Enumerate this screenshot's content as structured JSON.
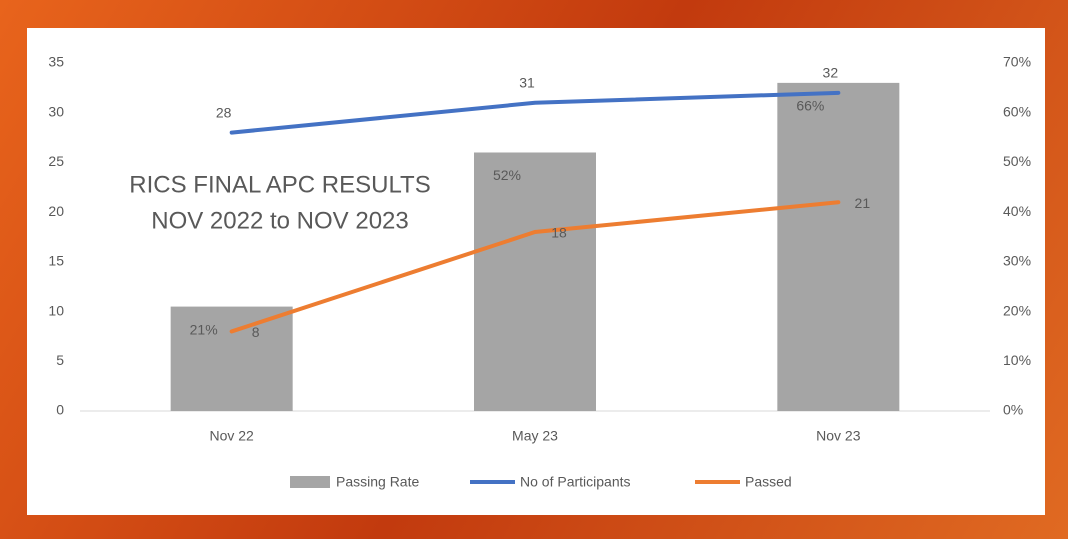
{
  "chart_data": {
    "type": "combo",
    "title": "RICS FINAL APC RESULTS",
    "subtitle": "NOV 2022 to NOV 2023",
    "categories": [
      "Nov 22",
      "May 23",
      "Nov 23"
    ],
    "series": [
      {
        "name": "Passing Rate",
        "type": "bar",
        "axis": "y2",
        "color": "#a5a5a5",
        "values": [
          21,
          52,
          66
        ],
        "value_labels": [
          "21%",
          "52%",
          "66%"
        ]
      },
      {
        "name": "No of Participants",
        "type": "line",
        "color": "#4472c4",
        "values": [
          28,
          31,
          32
        ]
      },
      {
        "name": "Passed",
        "type": "line",
        "color": "#ed7d31",
        "values": [
          8,
          18,
          21
        ]
      }
    ],
    "ylim": [
      0,
      35
    ],
    "yticks": [
      0,
      5,
      10,
      15,
      20,
      25,
      30,
      35
    ],
    "y2lim": [
      0,
      70
    ],
    "y2ticks": [
      {
        "value": 0,
        "label": "0%"
      },
      {
        "value": 10,
        "label": "10%"
      },
      {
        "value": 20,
        "label": "20%"
      },
      {
        "value": 30,
        "label": "30%"
      },
      {
        "value": 40,
        "label": "40%"
      },
      {
        "value": 50,
        "label": "50%"
      },
      {
        "value": 60,
        "label": "60%"
      },
      {
        "value": 70,
        "label": "70%"
      }
    ],
    "legend": "bottom"
  }
}
